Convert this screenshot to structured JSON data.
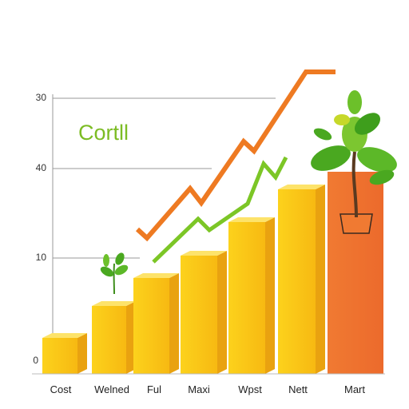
{
  "title": "Cortll",
  "axis_labels": [
    "30",
    "40",
    "10",
    "0"
  ],
  "categories": [
    "Cost",
    "Welned",
    "Ful",
    "Maxi",
    "Wpst",
    "Nett",
    "Mart"
  ]
}
